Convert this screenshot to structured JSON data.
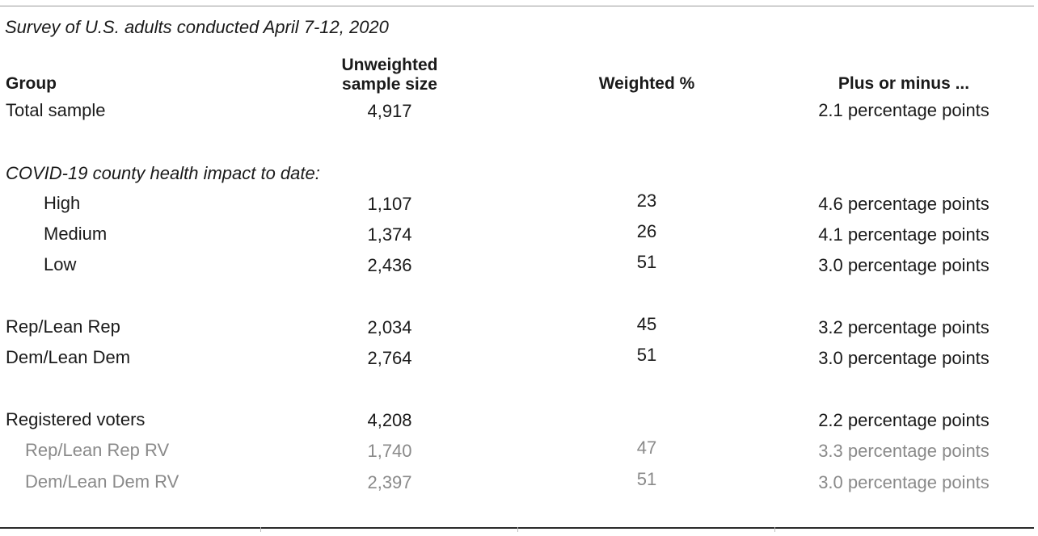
{
  "caption": "Survey of U.S. adults conducted April 7-12, 2020",
  "headers": {
    "group": "Group",
    "unweighted_line1": "Unweighted",
    "unweighted_line2": "sample size",
    "weighted": "Weighted %",
    "plus_minus": "Plus or minus ..."
  },
  "total": {
    "group": "Total sample",
    "unweighted": "4,917",
    "weighted": "",
    "plus_minus": "2.1 percentage points"
  },
  "covid_section_label": "COVID-19 county health impact to date:",
  "covid_rows": [
    {
      "group": "High",
      "unweighted": "1,107",
      "weighted": "23",
      "plus_minus": "4.6 percentage points"
    },
    {
      "group": "Medium",
      "unweighted": "1,374",
      "weighted": "26",
      "plus_minus": "4.1 percentage points"
    },
    {
      "group": "Low",
      "unweighted": "2,436",
      "weighted": "51",
      "plus_minus": "3.0 percentage points"
    }
  ],
  "party_rows": [
    {
      "group": "Rep/Lean Rep",
      "unweighted": "2,034",
      "weighted": "45",
      "plus_minus": "3.2 percentage points"
    },
    {
      "group": "Dem/Lean Dem",
      "unweighted": "2,764",
      "weighted": "51",
      "plus_minus": "3.0 percentage points"
    }
  ],
  "rv_row": {
    "group": "Registered voters",
    "unweighted": "4,208",
    "weighted": "",
    "plus_minus": "2.2 percentage points"
  },
  "rv_sub_rows": [
    {
      "group": "Rep/Lean Rep RV",
      "unweighted": "1,740",
      "weighted": "47",
      "plus_minus": "3.3 percentage points"
    },
    {
      "group": "Dem/Lean Dem RV",
      "unweighted": "2,397",
      "weighted": "51",
      "plus_minus": "3.0 percentage points"
    }
  ],
  "colors": {
    "text": "#1a1a1a",
    "subdued_text": "#8a8a8a",
    "rule": "#2a2a2a"
  }
}
